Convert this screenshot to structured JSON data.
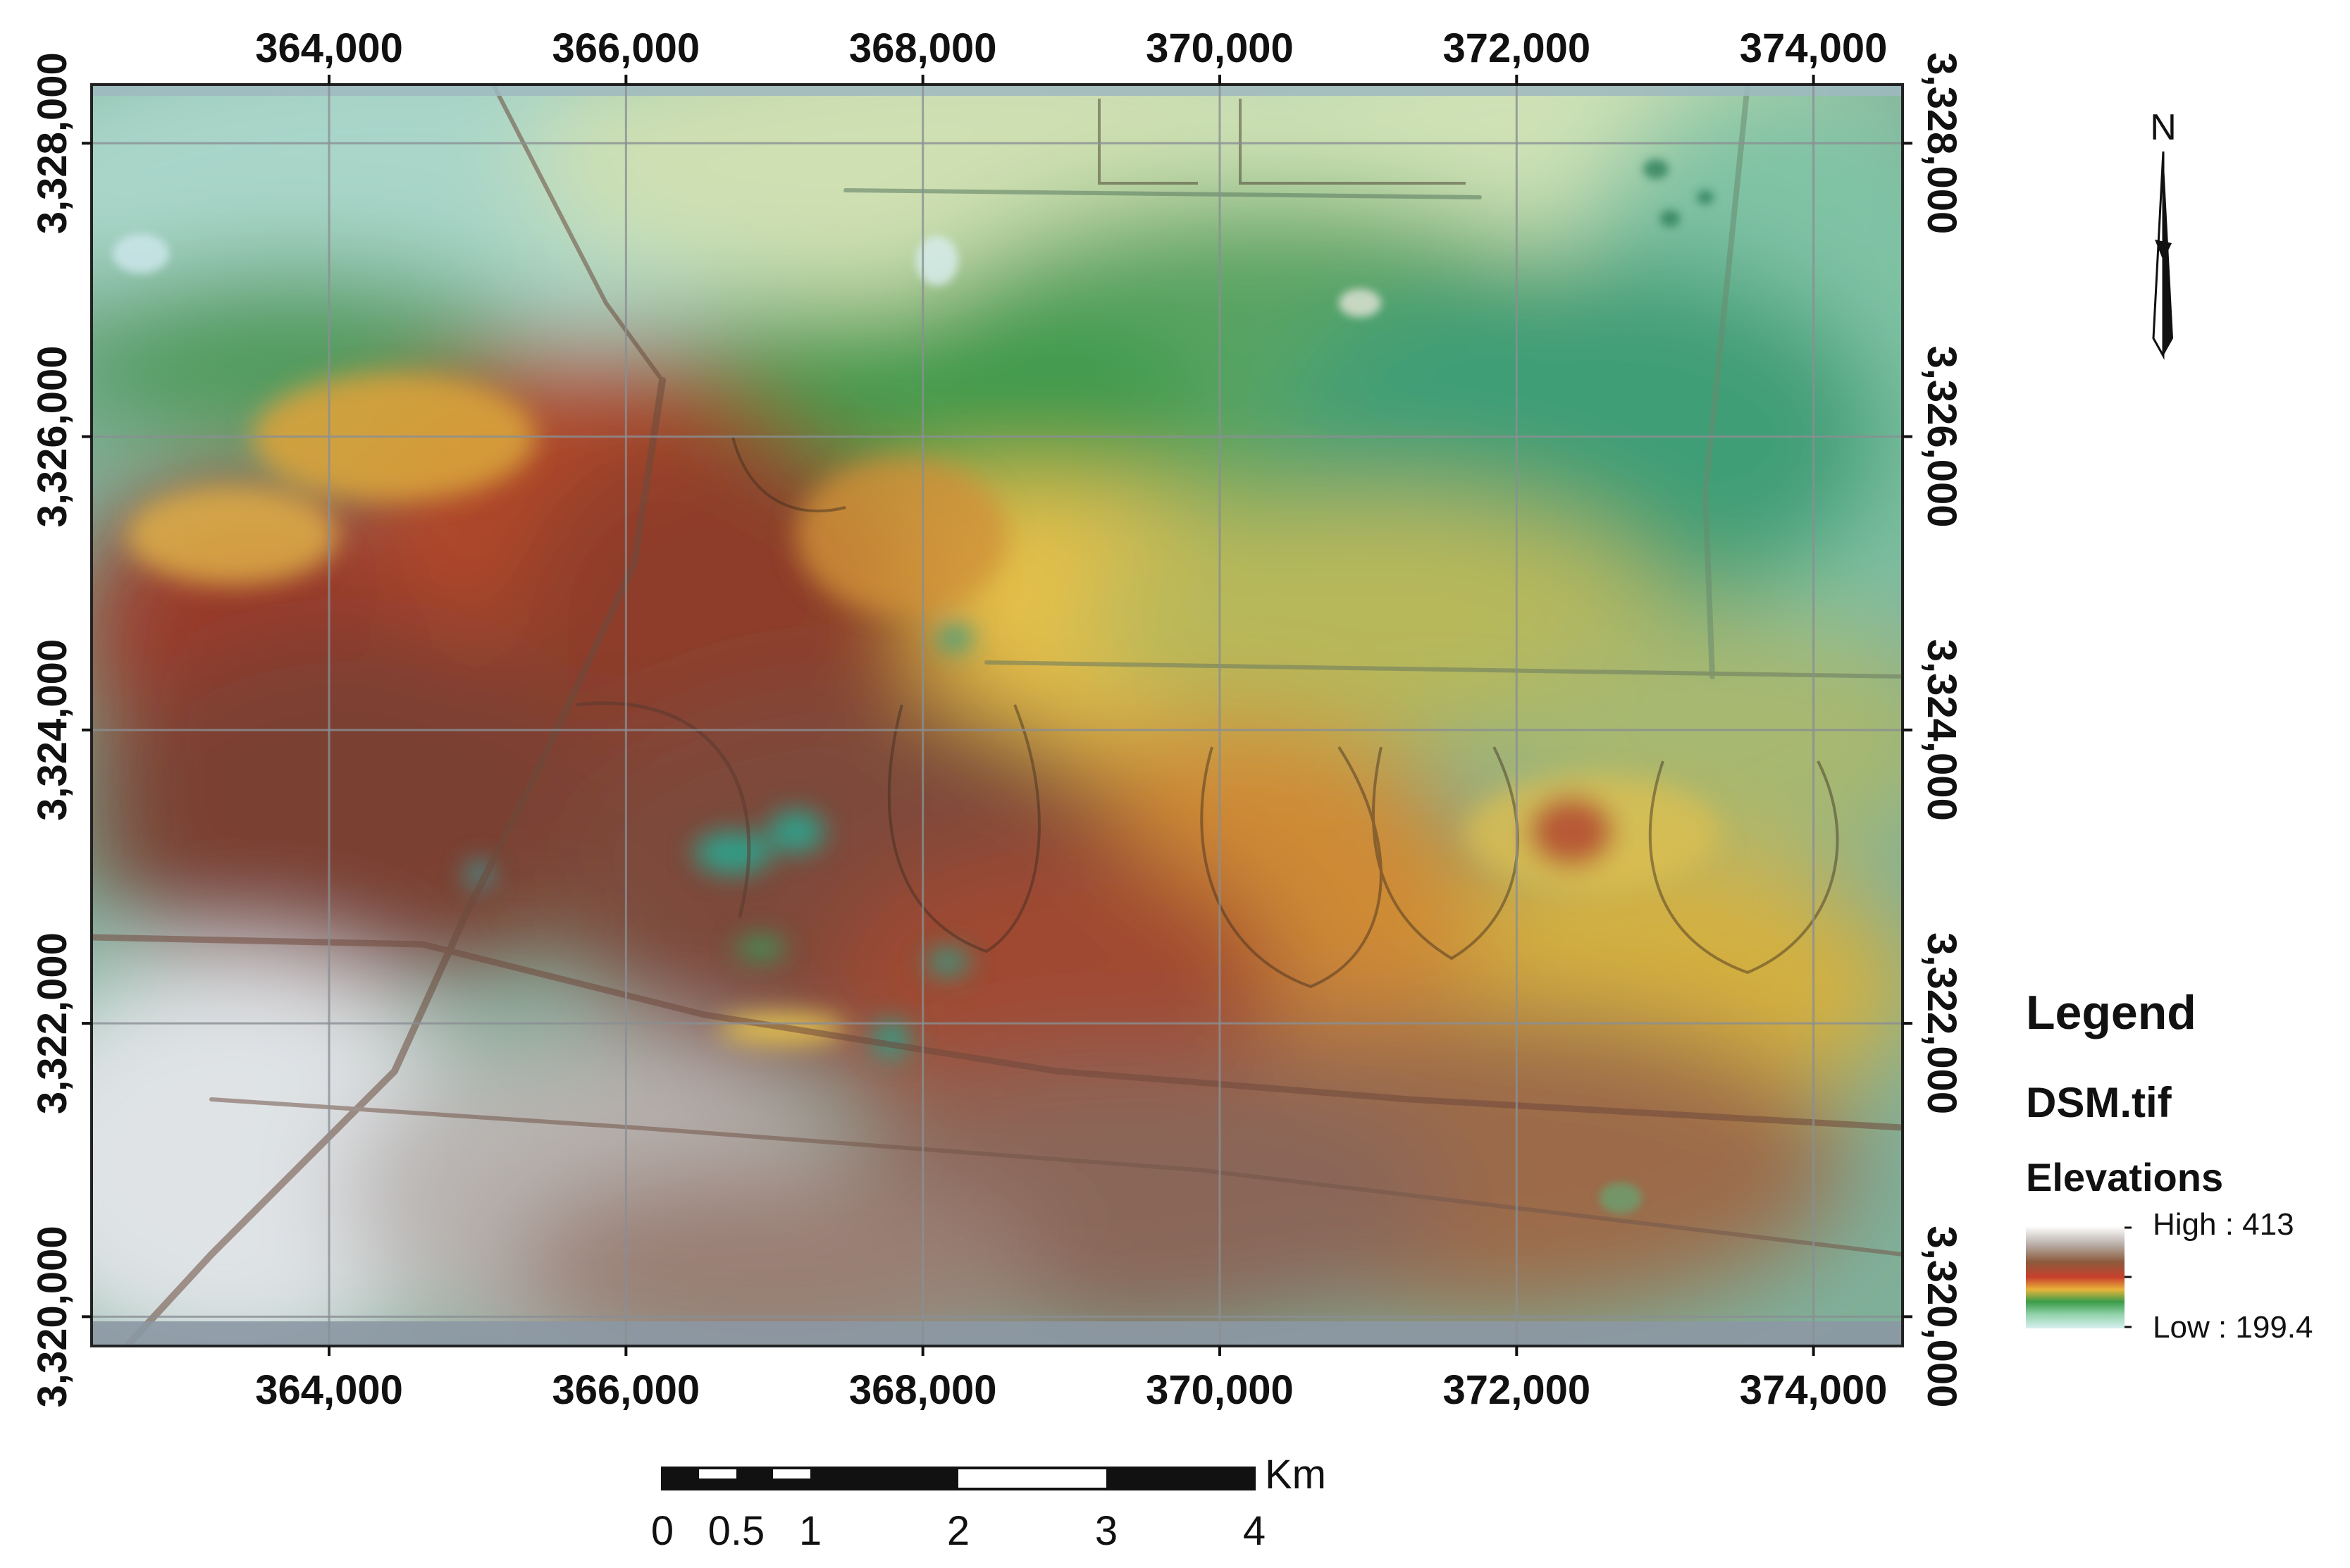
{
  "map": {
    "x_extent": [
      362400,
      374600
    ],
    "y_extent": [
      3319800,
      3328400
    ],
    "x_ticks": [
      364000,
      366000,
      368000,
      370000,
      372000,
      374000
    ],
    "y_ticks": [
      3320000,
      3322000,
      3324000,
      3326000,
      3328000
    ],
    "x_tick_labels": [
      "364,000",
      "366,000",
      "368,000",
      "370,000",
      "372,000",
      "374,000"
    ],
    "y_tick_labels": [
      "3,320,000",
      "3,322,000",
      "3,324,000",
      "3,326,000",
      "3,328,000"
    ]
  },
  "north_arrow": {
    "label": "N",
    "icon": "north-arrow-icon"
  },
  "legend": {
    "title": "Legend",
    "layer": "DSM.tif",
    "field": "Elevations",
    "high_label": "High : 413",
    "low_label": "Low : 199.4",
    "ramp_colors": [
      "#ffffff",
      "#b0a8a4",
      "#8c5a3c",
      "#c23a2a",
      "#e8b43a",
      "#3aa04a",
      "#8fd1a8",
      "#d8f0f0"
    ]
  },
  "scale_bar": {
    "unit": "Km",
    "labels": [
      "0",
      "0.5",
      "1",
      "2",
      "3",
      "4"
    ]
  }
}
